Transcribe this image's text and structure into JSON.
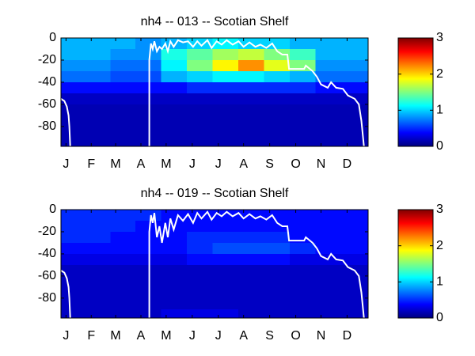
{
  "chart_data": [
    {
      "type": "heatmap",
      "title": "nh4 -- 013 -- Scotian Shelf",
      "x": [
        15,
        46,
        74,
        105,
        135,
        166,
        196,
        227,
        258,
        288,
        319,
        349
      ],
      "y": [
        -5,
        -15,
        -25,
        -35,
        -45,
        -55,
        -65,
        -75,
        -85,
        -95
      ],
      "z": [
        [
          0.9,
          0.9,
          0.9,
          0.8,
          0.9,
          1.0,
          1.1,
          1.0,
          1.0,
          0.9,
          0.9,
          0.9
        ],
        [
          0.9,
          0.9,
          0.8,
          0.8,
          1.2,
          1.4,
          1.6,
          1.7,
          1.5,
          1.3,
          0.9,
          0.9
        ],
        [
          0.8,
          0.8,
          0.7,
          0.7,
          1.1,
          1.5,
          1.9,
          2.2,
          1.8,
          1.5,
          0.8,
          0.8
        ],
        [
          0.7,
          0.7,
          0.6,
          0.6,
          0.9,
          1.0,
          1.1,
          1.1,
          1.0,
          0.9,
          0.7,
          0.7
        ],
        [
          0.4,
          0.4,
          0.4,
          0.4,
          0.4,
          0.5,
          0.5,
          0.5,
          0.5,
          0.5,
          0.4,
          0.4
        ],
        [
          0.2,
          0.2,
          0.2,
          0.2,
          0.2,
          0.2,
          0.2,
          0.2,
          0.2,
          0.2,
          0.2,
          0.2
        ],
        [
          0.15,
          0.15,
          0.15,
          0.15,
          0.15,
          0.15,
          0.15,
          0.15,
          0.15,
          0.15,
          0.15,
          0.15
        ],
        [
          0.15,
          0.15,
          0.15,
          0.15,
          0.15,
          0.15,
          0.15,
          0.15,
          0.15,
          0.15,
          0.15,
          0.15
        ],
        [
          0.15,
          0.15,
          0.15,
          0.15,
          0.15,
          0.15,
          0.15,
          0.15,
          0.15,
          0.15,
          0.15,
          0.15
        ],
        [
          0.15,
          0.15,
          0.15,
          0.15,
          0.15,
          0.15,
          0.15,
          0.15,
          0.15,
          0.15,
          0.15,
          0.15
        ]
      ],
      "colormap": "jet",
      "clim": [
        0,
        3
      ],
      "cticks": [
        0,
        1,
        2,
        3
      ],
      "xlim": [
        1,
        366
      ],
      "ylim": [
        -98,
        0
      ],
      "xticks": [
        {
          "value": 7,
          "label": "J"
        },
        {
          "value": 37,
          "label": "F"
        },
        {
          "value": 66,
          "label": "M"
        },
        {
          "value": 96,
          "label": "A"
        },
        {
          "value": 126,
          "label": "M"
        },
        {
          "value": 157,
          "label": "J"
        },
        {
          "value": 188,
          "label": "J"
        },
        {
          "value": 218,
          "label": "A"
        },
        {
          "value": 249,
          "label": "S"
        },
        {
          "value": 280,
          "label": "O"
        },
        {
          "value": 310,
          "label": "N"
        },
        {
          "value": 341,
          "label": "D"
        }
      ],
      "yticks": [
        0,
        -20,
        -40,
        -60,
        -80
      ],
      "series": [
        {
          "color": "#ffffff",
          "x": [
            1,
            5,
            8,
            10,
            11,
            12,
            null,
            106,
            106,
            108,
            110,
            112,
            115,
            118,
            121,
            125,
            128,
            131,
            135,
            140,
            146,
            152,
            158,
            163,
            168,
            175,
            180,
            186,
            192,
            198,
            205,
            212,
            218,
            225,
            232,
            238,
            245,
            252,
            258,
            264,
            270,
            272,
            290,
            292,
            300,
            305,
            310,
            318,
            322,
            328,
            336,
            342,
            350,
            355,
            358,
            361
          ],
          "values": [
            -55,
            -57,
            -62,
            -70,
            -80,
            -98,
            null,
            -98,
            -20,
            -5,
            -10,
            -3,
            -12,
            -8,
            -10,
            -5,
            -12,
            -3,
            -8,
            -2,
            -4,
            -3,
            -8,
            -3,
            -7,
            -2,
            -9,
            -3,
            -6,
            -2,
            -6,
            -3,
            -8,
            -4,
            -8,
            -6,
            -9,
            -5,
            -12,
            -15,
            -15,
            -28,
            -28,
            -25,
            -30,
            -35,
            -42,
            -45,
            -40,
            -45,
            -46,
            -52,
            -55,
            -60,
            -75,
            -98
          ]
        }
      ]
    },
    {
      "type": "heatmap",
      "title": "nh4 -- 019 -- Scotian Shelf",
      "x": [
        15,
        46,
        74,
        105,
        135,
        166,
        196,
        227,
        258,
        288,
        319,
        349
      ],
      "y": [
        -5,
        -15,
        -25,
        -35,
        -45,
        -55,
        -65,
        -75,
        -85,
        -95
      ],
      "z": [
        [
          0.5,
          0.5,
          0.5,
          0.5,
          0.4,
          0.4,
          0.4,
          0.4,
          0.4,
          0.4,
          0.4,
          0.4
        ],
        [
          0.5,
          0.5,
          0.5,
          0.4,
          0.4,
          0.4,
          0.4,
          0.4,
          0.4,
          0.4,
          0.4,
          0.4
        ],
        [
          0.5,
          0.5,
          0.4,
          0.4,
          0.4,
          0.5,
          0.5,
          0.5,
          0.5,
          0.4,
          0.4,
          0.4
        ],
        [
          0.4,
          0.4,
          0.4,
          0.4,
          0.4,
          0.5,
          0.6,
          0.6,
          0.6,
          0.5,
          0.4,
          0.4
        ],
        [
          0.3,
          0.3,
          0.3,
          0.3,
          0.3,
          0.4,
          0.4,
          0.4,
          0.4,
          0.3,
          0.3,
          0.3
        ],
        [
          0.2,
          0.2,
          0.2,
          0.2,
          0.2,
          0.2,
          0.2,
          0.2,
          0.2,
          0.2,
          0.2,
          0.2
        ],
        [
          0.2,
          0.2,
          0.2,
          0.2,
          0.2,
          0.2,
          0.2,
          0.2,
          0.2,
          0.2,
          0.2,
          0.2
        ],
        [
          0.2,
          0.2,
          0.2,
          0.2,
          0.2,
          0.2,
          0.2,
          0.2,
          0.2,
          0.2,
          0.2,
          0.2
        ],
        [
          0.2,
          0.2,
          0.2,
          0.2,
          0.2,
          0.2,
          0.2,
          0.2,
          0.2,
          0.2,
          0.2,
          0.2
        ],
        [
          0.2,
          0.2,
          0.2,
          0.2,
          0.3,
          0.3,
          0.3,
          0.2,
          0.2,
          0.2,
          0.2,
          0.2
        ]
      ],
      "colormap": "jet",
      "clim": [
        0,
        3
      ],
      "cticks": [
        0,
        1,
        2,
        3
      ],
      "xlim": [
        1,
        366
      ],
      "ylim": [
        -98,
        0
      ],
      "xticks": [
        {
          "value": 7,
          "label": "J"
        },
        {
          "value": 37,
          "label": "F"
        },
        {
          "value": 66,
          "label": "M"
        },
        {
          "value": 96,
          "label": "A"
        },
        {
          "value": 126,
          "label": "M"
        },
        {
          "value": 157,
          "label": "J"
        },
        {
          "value": 188,
          "label": "J"
        },
        {
          "value": 218,
          "label": "A"
        },
        {
          "value": 249,
          "label": "S"
        },
        {
          "value": 280,
          "label": "O"
        },
        {
          "value": 310,
          "label": "N"
        },
        {
          "value": 341,
          "label": "D"
        }
      ],
      "yticks": [
        0,
        -20,
        -40,
        -60,
        -80
      ],
      "series": [
        {
          "color": "#ffffff",
          "x": [
            1,
            5,
            8,
            10,
            11,
            12,
            null,
            106,
            106,
            108,
            110,
            112,
            115,
            118,
            121,
            125,
            128,
            131,
            135,
            140,
            146,
            152,
            158,
            163,
            168,
            175,
            180,
            186,
            192,
            198,
            205,
            212,
            218,
            225,
            232,
            238,
            245,
            252,
            258,
            264,
            270,
            272,
            290,
            292,
            300,
            305,
            310,
            318,
            322,
            328,
            336,
            342,
            350,
            355,
            358,
            361
          ],
          "values": [
            -55,
            -57,
            -62,
            -70,
            -80,
            -98,
            null,
            -98,
            -20,
            -5,
            -12,
            -3,
            -25,
            -15,
            -30,
            -12,
            -25,
            -8,
            -18,
            -5,
            -10,
            -4,
            -12,
            -3,
            -8,
            -2,
            -9,
            -3,
            -6,
            -2,
            -6,
            -3,
            -8,
            -4,
            -8,
            -6,
            -9,
            -5,
            -12,
            -15,
            -15,
            -28,
            -28,
            -25,
            -30,
            -35,
            -42,
            -45,
            -40,
            -45,
            -46,
            -52,
            -55,
            -60,
            -75,
            -98
          ]
        }
      ]
    }
  ]
}
